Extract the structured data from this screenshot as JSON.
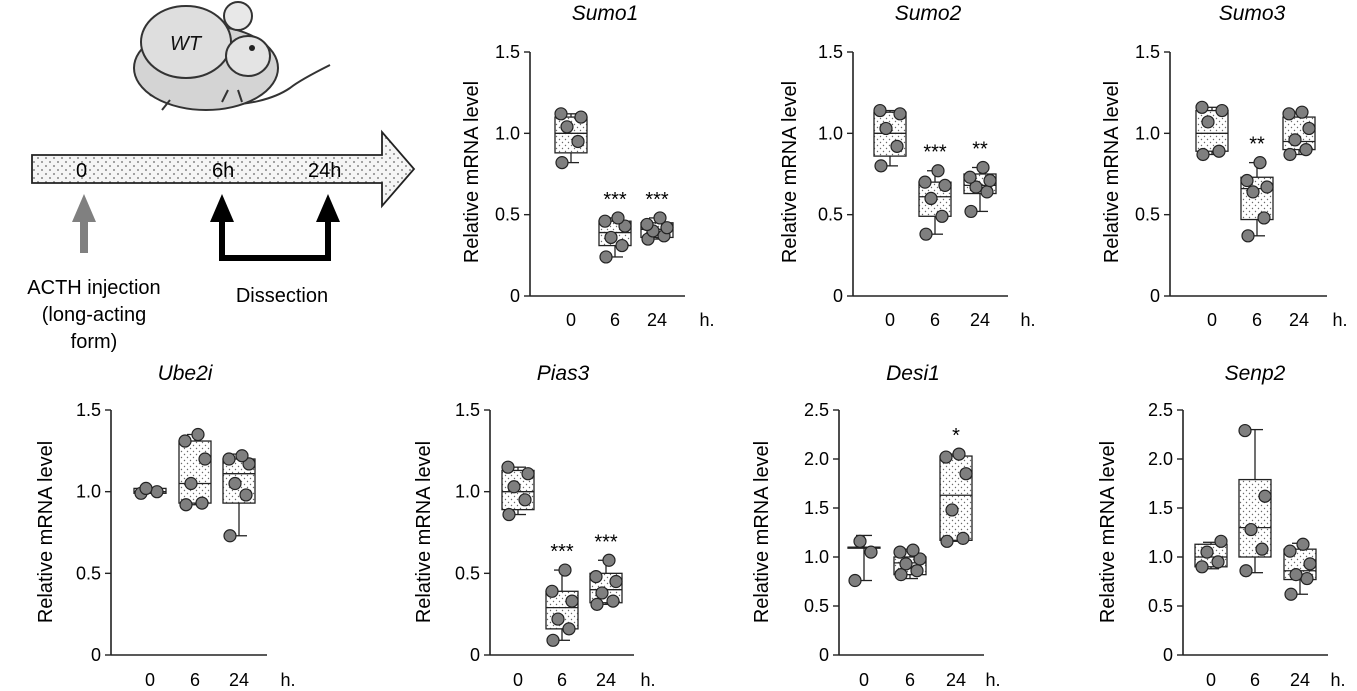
{
  "schematic": {
    "mouse_label": "WT",
    "timeline_labels": [
      "0",
      "6h",
      "24h"
    ],
    "injection_label": [
      "ACTH injection",
      "(long-acting",
      "form)"
    ],
    "dissection_label": "Dissection"
  },
  "chart_data": [
    {
      "type": "box",
      "title": "Sumo1",
      "xlabel": "",
      "ylabel": "Relative mRNA level",
      "ylim": [
        0,
        1.5
      ],
      "yticks": [
        "0",
        "0.5",
        "1.0",
        "1.5"
      ],
      "categories": [
        "0",
        "6",
        "24"
      ],
      "unit_label": "h.",
      "groups": [
        {
          "category": "0",
          "median": 1.0,
          "q1": 0.88,
          "q3": 1.1,
          "min": 0.82,
          "max": 1.12,
          "points": [
            0.82,
            0.95,
            1.04,
            1.1,
            1.12
          ],
          "significance": ""
        },
        {
          "category": "6",
          "median": 0.39,
          "q1": 0.31,
          "q3": 0.46,
          "min": 0.24,
          "max": 0.48,
          "points": [
            0.24,
            0.31,
            0.36,
            0.43,
            0.46,
            0.48
          ],
          "significance": "***"
        },
        {
          "category": "24",
          "median": 0.41,
          "q1": 0.36,
          "q3": 0.45,
          "min": 0.35,
          "max": 0.48,
          "points": [
            0.35,
            0.37,
            0.4,
            0.42,
            0.44,
            0.48
          ],
          "significance": "***"
        }
      ]
    },
    {
      "type": "box",
      "title": "Sumo2",
      "xlabel": "",
      "ylabel": "Relative mRNA level",
      "ylim": [
        0,
        1.5
      ],
      "yticks": [
        "0",
        "0.5",
        "1.0",
        "1.5"
      ],
      "categories": [
        "0",
        "6",
        "24"
      ],
      "unit_label": "h.",
      "groups": [
        {
          "category": "0",
          "median": 1.0,
          "q1": 0.86,
          "q3": 1.13,
          "min": 0.8,
          "max": 1.14,
          "points": [
            0.8,
            0.92,
            1.03,
            1.12,
            1.14
          ],
          "significance": ""
        },
        {
          "category": "6",
          "median": 0.61,
          "q1": 0.49,
          "q3": 0.7,
          "min": 0.38,
          "max": 0.77,
          "points": [
            0.38,
            0.49,
            0.6,
            0.68,
            0.7,
            0.77
          ],
          "significance": "***"
        },
        {
          "category": "24",
          "median": 0.68,
          "q1": 0.63,
          "q3": 0.75,
          "min": 0.52,
          "max": 0.79,
          "points": [
            0.52,
            0.64,
            0.67,
            0.71,
            0.73,
            0.79
          ],
          "significance": "**"
        }
      ]
    },
    {
      "type": "box",
      "title": "Sumo3",
      "xlabel": "",
      "ylabel": "Relative mRNA level",
      "ylim": [
        0,
        1.5
      ],
      "yticks": [
        "0",
        "0.5",
        "1.0",
        "1.5"
      ],
      "categories": [
        "0",
        "6",
        "24"
      ],
      "unit_label": "h.",
      "groups": [
        {
          "category": "0",
          "median": 1.0,
          "q1": 0.89,
          "q3": 1.14,
          "min": 0.87,
          "max": 1.16,
          "points": [
            0.87,
            0.89,
            1.07,
            1.14,
            1.16
          ],
          "significance": ""
        },
        {
          "category": "6",
          "median": 0.66,
          "q1": 0.47,
          "q3": 0.73,
          "min": 0.37,
          "max": 0.82,
          "points": [
            0.37,
            0.48,
            0.64,
            0.67,
            0.71,
            0.82
          ],
          "significance": "**"
        },
        {
          "category": "24",
          "median": 0.95,
          "q1": 0.9,
          "q3": 1.1,
          "min": 0.87,
          "max": 1.13,
          "points": [
            0.87,
            0.9,
            0.96,
            1.03,
            1.12,
            1.13
          ],
          "significance": ""
        }
      ]
    },
    {
      "type": "box",
      "title": "Ube2i",
      "xlabel": "",
      "ylabel": "Relative mRNA level",
      "ylim": [
        0,
        1.5
      ],
      "yticks": [
        "0",
        "0.5",
        "1.0",
        "1.5"
      ],
      "categories": [
        "0",
        "6",
        "24"
      ],
      "unit_label": "h.",
      "groups": [
        {
          "category": "0",
          "median": 1.0,
          "q1": 0.99,
          "q3": 1.02,
          "min": 0.99,
          "max": 1.02,
          "points": [
            0.99,
            1.0,
            1.02
          ],
          "significance": ""
        },
        {
          "category": "6",
          "median": 1.05,
          "q1": 0.93,
          "q3": 1.31,
          "min": 0.92,
          "max": 1.35,
          "points": [
            0.92,
            0.93,
            1.05,
            1.2,
            1.31,
            1.35
          ],
          "significance": ""
        },
        {
          "category": "24",
          "median": 1.11,
          "q1": 0.93,
          "q3": 1.2,
          "min": 0.73,
          "max": 1.23,
          "points": [
            0.73,
            0.98,
            1.05,
            1.17,
            1.2,
            1.22
          ],
          "significance": ""
        }
      ]
    },
    {
      "type": "box",
      "title": "Pias3",
      "xlabel": "",
      "ylabel": "Relative mRNA level",
      "ylim": [
        0,
        1.5
      ],
      "yticks": [
        "0",
        "0.5",
        "1.0",
        "1.5"
      ],
      "categories": [
        "0",
        "6",
        "24"
      ],
      "unit_label": "h.",
      "groups": [
        {
          "category": "0",
          "median": 1.0,
          "q1": 0.89,
          "q3": 1.13,
          "min": 0.86,
          "max": 1.15,
          "points": [
            0.86,
            0.95,
            1.03,
            1.11,
            1.15
          ],
          "significance": ""
        },
        {
          "category": "6",
          "median": 0.29,
          "q1": 0.16,
          "q3": 0.39,
          "min": 0.09,
          "max": 0.52,
          "points": [
            0.09,
            0.16,
            0.22,
            0.33,
            0.39,
            0.52
          ],
          "significance": "***"
        },
        {
          "category": "24",
          "median": 0.4,
          "q1": 0.32,
          "q3": 0.5,
          "min": 0.31,
          "max": 0.58,
          "points": [
            0.31,
            0.33,
            0.38,
            0.45,
            0.48,
            0.58
          ],
          "significance": "***"
        }
      ]
    },
    {
      "type": "box",
      "title": "Desi1",
      "xlabel": "",
      "ylabel": "Relative mRNA level",
      "ylim": [
        0,
        2.5
      ],
      "yticks": [
        "0",
        "0.5",
        "1.0",
        "1.5",
        "2.0",
        "2.5"
      ],
      "categories": [
        "0",
        "6",
        "24"
      ],
      "unit_label": "h.",
      "groups": [
        {
          "category": "0",
          "median": 1.1,
          "q1": 1.1,
          "q3": 1.1,
          "min": 0.76,
          "max": 1.22,
          "points": [
            0.76,
            1.05,
            1.16
          ],
          "significance": ""
        },
        {
          "category": "6",
          "median": 0.94,
          "q1": 0.82,
          "q3": 1.0,
          "min": 0.78,
          "max": 1.08,
          "points": [
            0.82,
            0.86,
            0.93,
            0.98,
            1.05,
            1.07
          ],
          "significance": ""
        },
        {
          "category": "24",
          "median": 1.63,
          "q1": 1.17,
          "q3": 2.03,
          "min": 1.16,
          "max": 2.05,
          "points": [
            1.16,
            1.19,
            1.48,
            1.85,
            2.02,
            2.05
          ],
          "significance": "*"
        }
      ]
    },
    {
      "type": "box",
      "title": "Senp2",
      "xlabel": "",
      "ylabel": "Relative mRNA level",
      "ylim": [
        0,
        2.5
      ],
      "yticks": [
        "0",
        "0.5",
        "1.0",
        "1.5",
        "2.0",
        "2.5"
      ],
      "categories": [
        "0",
        "6",
        "24"
      ],
      "unit_label": "h.",
      "groups": [
        {
          "category": "0",
          "median": 1.0,
          "q1": 0.9,
          "q3": 1.13,
          "min": 0.88,
          "max": 1.15,
          "points": [
            0.9,
            0.95,
            1.05,
            1.16
          ],
          "significance": ""
        },
        {
          "category": "6",
          "median": 1.3,
          "q1": 1.0,
          "q3": 1.79,
          "min": 0.84,
          "max": 2.3,
          "points": [
            0.86,
            1.08,
            1.28,
            1.62,
            2.29
          ],
          "significance": ""
        },
        {
          "category": "24",
          "median": 0.86,
          "q1": 0.77,
          "q3": 1.08,
          "min": 0.62,
          "max": 1.14,
          "points": [
            0.62,
            0.78,
            0.82,
            0.93,
            1.06,
            1.13
          ],
          "significance": ""
        }
      ]
    }
  ]
}
